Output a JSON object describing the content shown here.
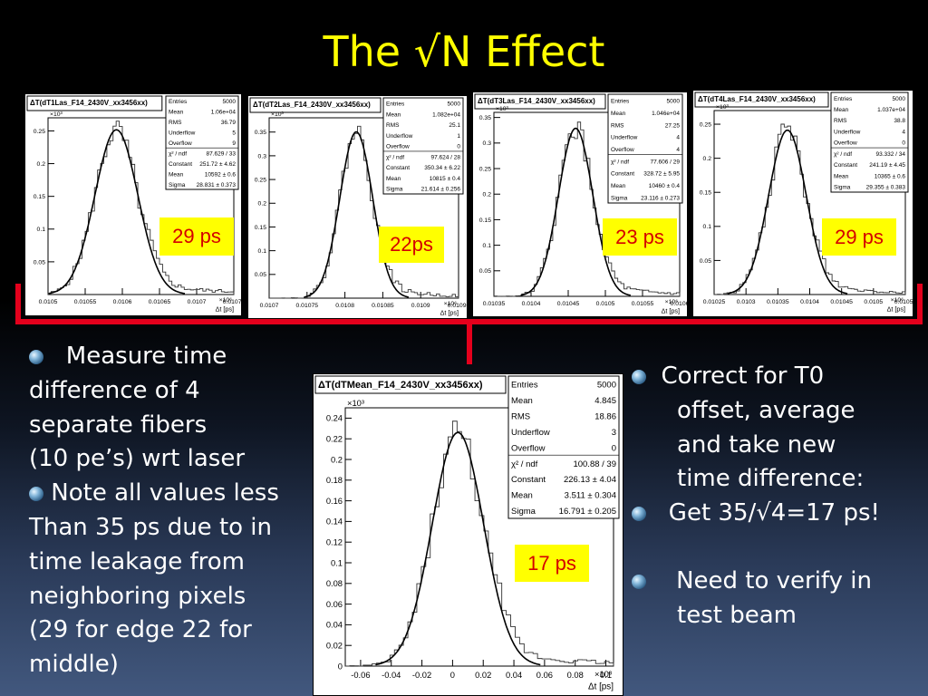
{
  "slide": {
    "title": "The √N Effect",
    "left_text": {
      "lines": [
        "Measure time",
        "difference of 4",
        "separate fibers",
        "(10 pe’s) wrt  laser",
        "Note all values less",
        "Than 35 ps due to in",
        "time leakage from",
        "neighboring pixels",
        "(29 for edge 22 for",
        "middle)"
      ]
    },
    "right_text": {
      "lines": [
        "Correct for T0",
        "offset,  average",
        "and take new",
        "time difference:",
        "Get 35/√4=17 ps!",
        "Need to verify in",
        "test beam"
      ]
    },
    "highlight_colors": {
      "label_bg": "#ffff00",
      "label_text": "#d40000",
      "bracket": "#e4001c",
      "title": "#ffff00"
    }
  },
  "chart_data": [
    {
      "type": "histogram",
      "title": "ΔT(dT1Las_F14_2430V_xx3456xx)",
      "xlabel": "Δt [ps]",
      "x_exponent": "×10⁶",
      "y_exponent": "×10³",
      "ylim": [
        0,
        0.27
      ],
      "xlim": [
        0.0105,
        0.01075
      ],
      "x_ticks": [
        {
          "v": 0.0105,
          "t": "0.0105"
        },
        {
          "v": 0.01055,
          "t": "0.01055"
        },
        {
          "v": 0.0106,
          "t": "0.0106"
        },
        {
          "v": 0.01065,
          "t": "0.01065"
        },
        {
          "v": 0.0107,
          "t": "0.0107"
        },
        {
          "v": 0.01075,
          "t": "0.01075"
        }
      ],
      "y_ticks": [
        {
          "v": 0.05,
          "t": "0.05"
        },
        {
          "v": 0.1,
          "t": "0.1"
        },
        {
          "v": 0.15,
          "t": "0.15"
        },
        {
          "v": 0.2,
          "t": "0.2"
        },
        {
          "v": 0.25,
          "t": "0.25"
        }
      ],
      "stats": [
        [
          "Entries",
          "5000"
        ],
        [
          "Mean",
          "1.06e+04"
        ],
        [
          "RMS",
          "36.79"
        ],
        [
          "Underflow",
          "5"
        ],
        [
          "Overflow",
          "9"
        ],
        [
          "χ² / ndf",
          "87.629 / 33"
        ],
        [
          "Constant",
          "251.72 ± 4.62"
        ],
        [
          "Mean",
          "10592 ± 0.6"
        ],
        [
          "Sigma",
          "28.831 ± 0.373"
        ]
      ],
      "fit": {
        "constant": 0.2517,
        "mean": 0.010592,
        "sigma": 2.88e-05
      },
      "annotation": "29 ps"
    },
    {
      "type": "histogram",
      "title": "ΔT(dT2Las_F14_2430V_xx3456xx)",
      "xlabel": "Δt [ps]",
      "x_exponent": "×10⁶",
      "y_exponent": "×10³",
      "ylim": [
        0,
        0.38
      ],
      "xlim": [
        0.0107,
        0.01095
      ],
      "x_ticks": [
        {
          "v": 0.0107,
          "t": "0.0107"
        },
        {
          "v": 0.01075,
          "t": "0.01075"
        },
        {
          "v": 0.0108,
          "t": "0.0108"
        },
        {
          "v": 0.01085,
          "t": "0.01085"
        },
        {
          "v": 0.0109,
          "t": "0.0109"
        },
        {
          "v": 0.01095,
          "t": "0.01095"
        }
      ],
      "y_ticks": [
        {
          "v": 0.05,
          "t": "0.05"
        },
        {
          "v": 0.1,
          "t": "0.1"
        },
        {
          "v": 0.15,
          "t": "0.15"
        },
        {
          "v": 0.2,
          "t": "0.2"
        },
        {
          "v": 0.25,
          "t": "0.25"
        },
        {
          "v": 0.3,
          "t": "0.3"
        },
        {
          "v": 0.35,
          "t": "0.35"
        }
      ],
      "stats": [
        [
          "Entries",
          "5000"
        ],
        [
          "Mean",
          "1.082e+04"
        ],
        [
          "RMS",
          "25.1"
        ],
        [
          "Underflow",
          "1"
        ],
        [
          "Overflow",
          "0"
        ],
        [
          "χ² / ndf",
          "97.624 / 28"
        ],
        [
          "Constant",
          "350.34 ± 6.22"
        ],
        [
          "Mean",
          "10815 ± 0.4"
        ],
        [
          "Sigma",
          "21.614 ± 0.256"
        ]
      ],
      "fit": {
        "constant": 0.3503,
        "mean": 0.010815,
        "sigma": 2.16e-05
      },
      "annotation": "22ps"
    },
    {
      "type": "histogram",
      "title": "ΔT(dT3Las_F14_2430V_xx3456xx)",
      "xlabel": "Δt [ps]",
      "x_exponent": "×10⁶",
      "y_exponent": "×10³",
      "ylim": [
        0,
        0.36
      ],
      "xlim": [
        0.01035,
        0.0106
      ],
      "x_ticks": [
        {
          "v": 0.01035,
          "t": "0.01035"
        },
        {
          "v": 0.0104,
          "t": "0.0104"
        },
        {
          "v": 0.01045,
          "t": "0.01045"
        },
        {
          "v": 0.0105,
          "t": "0.0105"
        },
        {
          "v": 0.01055,
          "t": "0.01055"
        },
        {
          "v": 0.0106,
          "t": "0.0106"
        }
      ],
      "y_ticks": [
        {
          "v": 0.05,
          "t": "0.05"
        },
        {
          "v": 0.1,
          "t": "0.1"
        },
        {
          "v": 0.15,
          "t": "0.15"
        },
        {
          "v": 0.2,
          "t": "0.2"
        },
        {
          "v": 0.25,
          "t": "0.25"
        },
        {
          "v": 0.3,
          "t": "0.3"
        },
        {
          "v": 0.35,
          "t": "0.35"
        }
      ],
      "stats": [
        [
          "Entries",
          "5000"
        ],
        [
          "Mean",
          "1.046e+04"
        ],
        [
          "RMS",
          "27.25"
        ],
        [
          "Underflow",
          "4"
        ],
        [
          "Overflow",
          "4"
        ],
        [
          "χ² / ndf",
          "77.606 / 29"
        ],
        [
          "Constant",
          "328.72 ± 5.95"
        ],
        [
          "Mean",
          "10460 ± 0.4"
        ],
        [
          "Sigma",
          "23.116 ± 0.273"
        ]
      ],
      "fit": {
        "constant": 0.3287,
        "mean": 0.01046,
        "sigma": 2.31e-05
      },
      "annotation": "23 ps"
    },
    {
      "type": "histogram",
      "title": "ΔT(dT4Las_F14_2430V_xx3456xx)",
      "xlabel": "Δt [ps]",
      "x_exponent": "×10⁶",
      "y_exponent": "×10³",
      "ylim": [
        0,
        0.27
      ],
      "xlim": [
        0.01025,
        0.01055
      ],
      "x_ticks": [
        {
          "v": 0.01025,
          "t": "0.01025"
        },
        {
          "v": 0.0103,
          "t": "0.0103"
        },
        {
          "v": 0.01035,
          "t": "0.01035"
        },
        {
          "v": 0.0104,
          "t": "0.0104"
        },
        {
          "v": 0.01045,
          "t": "0.01045"
        },
        {
          "v": 0.0105,
          "t": "0.0105"
        },
        {
          "v": 0.01055,
          "t": "0.01055"
        }
      ],
      "y_ticks": [
        {
          "v": 0.05,
          "t": "0.05"
        },
        {
          "v": 0.1,
          "t": "0.1"
        },
        {
          "v": 0.15,
          "t": "0.15"
        },
        {
          "v": 0.2,
          "t": "0.2"
        },
        {
          "v": 0.25,
          "t": "0.25"
        }
      ],
      "stats": [
        [
          "Entries",
          "5000"
        ],
        [
          "Mean",
          "1.037e+04"
        ],
        [
          "RMS",
          "38.8"
        ],
        [
          "Underflow",
          "4"
        ],
        [
          "Overflow",
          "0"
        ],
        [
          "χ² / ndf",
          "93.332 / 34"
        ],
        [
          "Constant",
          "241.19 ± 4.45"
        ],
        [
          "Mean",
          "10365 ± 0.6"
        ],
        [
          "Sigma",
          "29.355 ± 0.383"
        ]
      ],
      "fit": {
        "constant": 0.2412,
        "mean": 0.010365,
        "sigma": 2.94e-05
      },
      "annotation": "29 ps"
    },
    {
      "type": "histogram",
      "title": "ΔT(dTMean_F14_2430V_xx3456xx)",
      "xlabel": "Δt [ps]",
      "x_exponent": "×10³",
      "y_exponent": "×10³",
      "ylim": [
        0,
        0.25
      ],
      "xlim": [
        -0.07,
        0.105
      ],
      "x_ticks": [
        {
          "v": -0.06,
          "t": "-0.06"
        },
        {
          "v": -0.04,
          "t": "-0.04"
        },
        {
          "v": -0.02,
          "t": "-0.02"
        },
        {
          "v": 0,
          "t": "0"
        },
        {
          "v": 0.02,
          "t": "0.02"
        },
        {
          "v": 0.04,
          "t": "0.04"
        },
        {
          "v": 0.06,
          "t": "0.06"
        },
        {
          "v": 0.08,
          "t": "0.08"
        },
        {
          "v": 0.1,
          "t": "0.1"
        }
      ],
      "y_ticks": [
        {
          "v": 0,
          "t": "0"
        },
        {
          "v": 0.02,
          "t": "0.02"
        },
        {
          "v": 0.04,
          "t": "0.04"
        },
        {
          "v": 0.06,
          "t": "0.06"
        },
        {
          "v": 0.08,
          "t": "0.08"
        },
        {
          "v": 0.1,
          "t": "0.1"
        },
        {
          "v": 0.12,
          "t": "0.12"
        },
        {
          "v": 0.14,
          "t": "0.14"
        },
        {
          "v": 0.16,
          "t": "0.16"
        },
        {
          "v": 0.18,
          "t": "0.18"
        },
        {
          "v": 0.2,
          "t": "0.2"
        },
        {
          "v": 0.22,
          "t": "0.22"
        },
        {
          "v": 0.24,
          "t": "0.24"
        }
      ],
      "stats": [
        [
          "Entries",
          "5000"
        ],
        [
          "Mean",
          "4.845"
        ],
        [
          "RMS",
          "18.86"
        ],
        [
          "Underflow",
          "3"
        ],
        [
          "Overflow",
          "0"
        ],
        [
          "χ² / ndf",
          "100.88 / 39"
        ],
        [
          "Constant",
          "226.13 ± 4.04"
        ],
        [
          "Mean",
          "3.511 ± 0.304"
        ],
        [
          "Sigma",
          "16.791 ± 0.205"
        ]
      ],
      "fit": {
        "constant": 0.2261,
        "mean": 0.0035,
        "sigma": 0.0168
      },
      "annotation": "17 ps"
    }
  ]
}
